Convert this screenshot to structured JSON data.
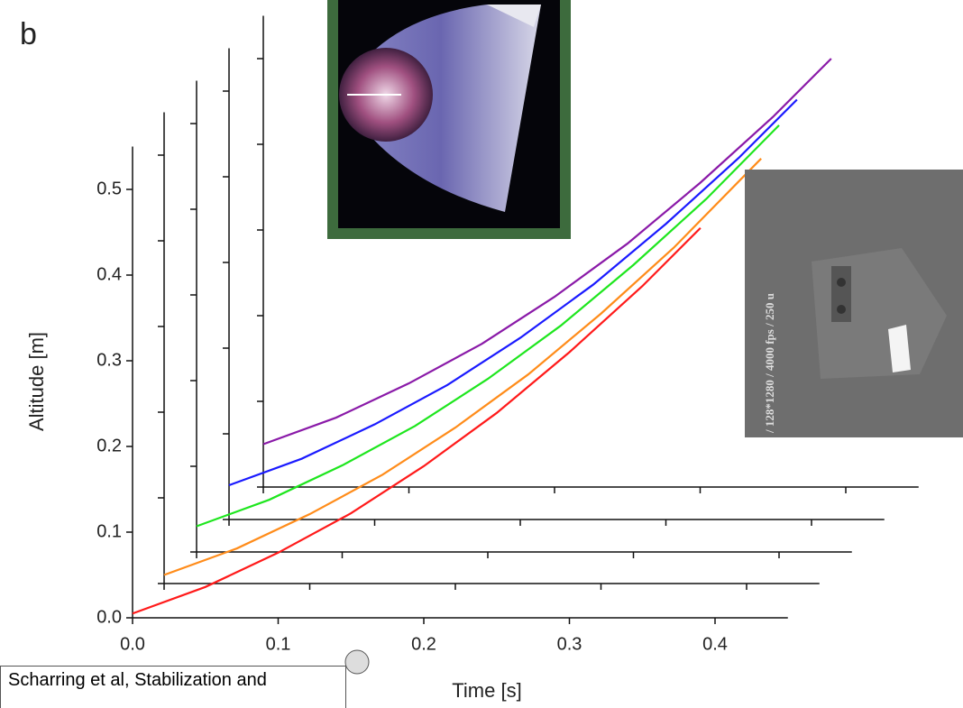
{
  "panel_label": "b",
  "inset_text": "/ 128*1280 / 4000 fps / 250 u",
  "caption": "Scharring et al, Stabilization and",
  "chart_data": {
    "type": "line",
    "xlabel": "Time [s]",
    "ylabel": "Altitude [m]",
    "xlim": [
      0,
      0.45
    ],
    "ylim": [
      0,
      0.55
    ],
    "xticks": [
      {
        "value": 0,
        "label": "0.0"
      },
      0.1,
      0.2,
      0.3,
      0.4
    ],
    "yticks": [
      {
        "value": 0,
        "label": "0.0"
      },
      0.1,
      0.2,
      0.3,
      0.4,
      0.5
    ],
    "series": [
      {
        "color": "#ff1a1a",
        "x": [
          0,
          0.05,
          0.1,
          0.15,
          0.2,
          0.25,
          0.3,
          0.35,
          0.39
        ],
        "values": [
          0.005,
          0.036,
          0.076,
          0.122,
          0.177,
          0.239,
          0.31,
          0.387,
          0.455
        ]
      },
      {
        "color": "#ff8c1a",
        "x": [
          0,
          0.05,
          0.1,
          0.15,
          0.2,
          0.25,
          0.3,
          0.35,
          0.41
        ],
        "values": [
          0.01,
          0.041,
          0.081,
          0.127,
          0.182,
          0.244,
          0.315,
          0.392,
          0.496
        ]
      },
      {
        "color": "#1ee61e",
        "x": [
          0,
          0.05,
          0.1,
          0.15,
          0.2,
          0.25,
          0.3,
          0.35,
          0.4
        ],
        "values": [
          0.03,
          0.061,
          0.101,
          0.147,
          0.202,
          0.264,
          0.335,
          0.412,
          0.498
        ]
      },
      {
        "color": "#1a1aff",
        "x": [
          0,
          0.05,
          0.1,
          0.15,
          0.2,
          0.25,
          0.3,
          0.35,
          0.39
        ],
        "values": [
          0.04,
          0.071,
          0.111,
          0.157,
          0.212,
          0.274,
          0.345,
          0.422,
          0.49
        ]
      },
      {
        "color": "#8a1aa8",
        "x": [
          0,
          0.05,
          0.1,
          0.15,
          0.2,
          0.25,
          0.3,
          0.35,
          0.39
        ],
        "values": [
          0.05,
          0.081,
          0.121,
          0.167,
          0.222,
          0.284,
          0.355,
          0.432,
          0.5
        ]
      }
    ]
  }
}
